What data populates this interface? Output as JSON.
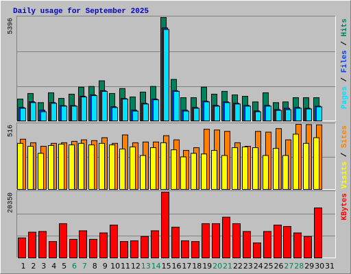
{
  "chart_data": {
    "type": "bar",
    "title": "Daily usage for September 2025",
    "categories": [
      "1",
      "2",
      "3",
      "4",
      "5",
      "6",
      "7",
      "8",
      "9",
      "10",
      "11",
      "12",
      "13",
      "14",
      "15",
      "16",
      "17",
      "18",
      "19",
      "20",
      "21",
      "22",
      "23",
      "24",
      "25",
      "26",
      "27",
      "28",
      "29",
      "30",
      "31"
    ],
    "weekend_categories": [
      "6",
      "7",
      "13",
      "14",
      "20",
      "21",
      "27",
      "28"
    ],
    "weekend_label_color": "#00805c",
    "label_color": "#000000",
    "panels": [
      {
        "ylim": [
          0,
          5396
        ],
        "yticks": [
          5396
        ],
        "series": [
          {
            "name": "Hits",
            "color": "#00805c",
            "values": [
              1138,
              1431,
              954,
              1468,
              1174,
              1395,
              1762,
              1798,
              2092,
              1431,
              1688,
              1248,
              1505,
              1798,
              5396,
              2165,
              1211,
              1211,
              1762,
              1395,
              1541,
              1358,
              1284,
              991,
              1468,
              954,
              991,
              1211,
              1211,
              1211,
              null
            ]
          },
          {
            "name": "Files",
            "color": "#0040ff",
            "values": [
              700,
              1000,
              560,
              960,
              800,
              800,
              1290,
              1360,
              1580,
              740,
              1170,
              560,
              920,
              1140,
              4850,
              1580,
              560,
              700,
              1030,
              810,
              990,
              920,
              810,
              520,
              810,
              590,
              660,
              700,
              660,
              770,
              null
            ]
          },
          {
            "name": "Pages",
            "color": "#00e0ff",
            "values": [
              661,
              954,
              477,
              918,
              771,
              771,
              1248,
              1321,
              1541,
              697,
              1138,
              514,
              881,
              1101,
              4771,
              1541,
              514,
              661,
              991,
              771,
              954,
              881,
              771,
              477,
              771,
              551,
              587,
              661,
              624,
              734,
              null
            ]
          }
        ]
      },
      {
        "ylim": [
          0,
          516
        ],
        "yticks": [
          516
        ],
        "series": [
          {
            "name": "Sites",
            "color": "#ff8000",
            "values": [
              398,
              370,
              342,
              365,
              370,
              381,
              393,
              387,
              410,
              365,
              432,
              370,
              376,
              376,
              426,
              393,
              309,
              331,
              477,
              471,
              460,
              370,
              342,
              460,
              454,
              482,
              393,
              516,
              514,
              512,
              null
            ]
          },
          {
            "name": "Visits",
            "color": "#ffff00",
            "values": [
              365,
              342,
              286,
              348,
              359,
              353,
              365,
              353,
              365,
              353,
              320,
              337,
              269,
              331,
              370,
              314,
              258,
              286,
              281,
              309,
              269,
              331,
              337,
              331,
              269,
              325,
              269,
              438,
              365,
              410,
              null
            ]
          }
        ]
      },
      {
        "ylim": [
          0,
          20350
        ],
        "yticks": [
          20350
        ],
        "series": [
          {
            "name": "KBytes",
            "color": "#ff0000",
            "values": [
              6188,
              7956,
              8177,
              5083,
              10608,
              5746,
              8398,
              5746,
              7735,
              10166,
              5083,
              5304,
              6630,
              8398,
              20350,
              9503,
              5304,
              5083,
              10608,
              10608,
              12597,
              10608,
              8177,
              4641,
              8177,
              10166,
              9724,
              7735,
              6630,
              15470,
              null
            ]
          }
        ]
      }
    ]
  }
}
